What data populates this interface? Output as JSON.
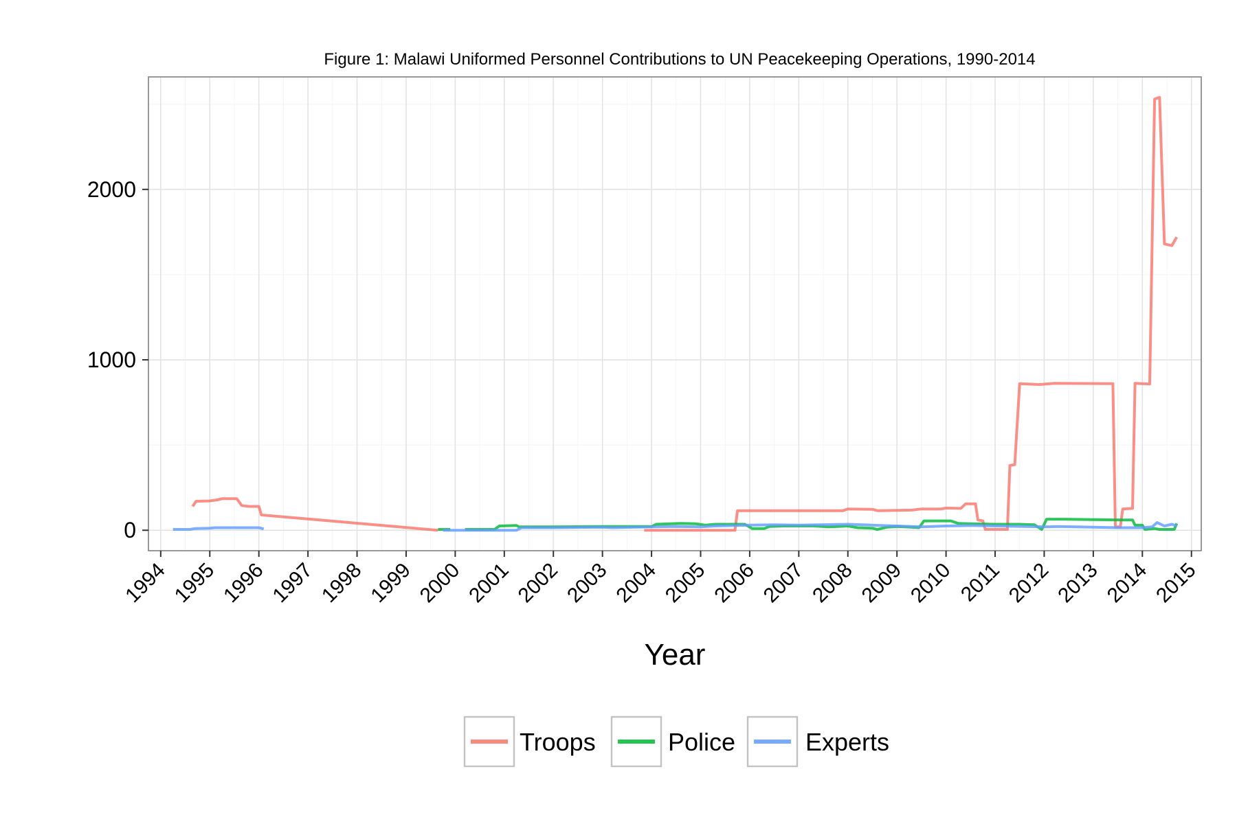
{
  "chart_data": {
    "type": "line",
    "title": "Figure 1: Malawi Uniformed Personnel Contributions to UN Peacekeeping Operations, 1990-2014",
    "xlabel": "Year",
    "ylabel": "",
    "xlim": [
      1993.75,
      2015.2
    ],
    "ylim": [
      -120,
      2660
    ],
    "x_ticks": [
      "1994",
      "1995",
      "1996",
      "1997",
      "1998",
      "1999",
      "2000",
      "2001",
      "2002",
      "2003",
      "2004",
      "2005",
      "2006",
      "2007",
      "2008",
      "2009",
      "2010",
      "2011",
      "2012",
      "2013",
      "2014",
      "2015"
    ],
    "y_ticks": [
      0,
      1000,
      2000
    ],
    "grid": true,
    "legend_position": "bottom",
    "series": [
      {
        "name": "Troops",
        "color": "#F8766D",
        "segments": [
          [
            [
              1994.65,
              140
            ],
            [
              1994.72,
              170
            ],
            [
              1995.0,
              172
            ],
            [
              1995.15,
              178
            ],
            [
              1995.25,
              185
            ],
            [
              1995.55,
              185
            ],
            [
              1995.65,
              145
            ],
            [
              1995.8,
              140
            ],
            [
              1996.0,
              140
            ],
            [
              1996.05,
              90
            ],
            [
              1999.65,
              0
            ]
          ],
          [
            [
              2003.85,
              0
            ],
            [
              2005.7,
              0
            ],
            [
              2005.75,
              115
            ],
            [
              2007.0,
              115
            ],
            [
              2007.9,
              115
            ],
            [
              2008.0,
              125
            ],
            [
              2008.5,
              123
            ],
            [
              2008.6,
              115
            ],
            [
              2009.3,
              118
            ],
            [
              2009.5,
              125
            ],
            [
              2009.9,
              125
            ],
            [
              2010.0,
              130
            ],
            [
              2010.3,
              128
            ],
            [
              2010.4,
              155
            ],
            [
              2010.6,
              155
            ],
            [
              2010.65,
              60
            ],
            [
              2010.75,
              55
            ],
            [
              2010.8,
              5
            ],
            [
              2011.25,
              5
            ],
            [
              2011.3,
              380
            ],
            [
              2011.4,
              385
            ],
            [
              2011.5,
              860
            ],
            [
              2011.9,
              855
            ],
            [
              2012.2,
              862
            ],
            [
              2013.4,
              860
            ],
            [
              2013.45,
              20
            ],
            [
              2013.55,
              20
            ],
            [
              2013.6,
              125
            ],
            [
              2013.8,
              128
            ],
            [
              2013.85,
              862
            ],
            [
              2014.15,
              858
            ],
            [
              2014.25,
              2530
            ],
            [
              2014.35,
              2540
            ],
            [
              2014.45,
              1680
            ],
            [
              2014.6,
              1670
            ],
            [
              2014.7,
              1720
            ]
          ]
        ]
      },
      {
        "name": "Police",
        "color": "#00BA38",
        "segments": [
          [
            [
              1999.65,
              5
            ],
            [
              1999.9,
              5
            ]
          ],
          [
            [
              2000.2,
              5
            ],
            [
              2000.8,
              5
            ],
            [
              2000.9,
              25
            ],
            [
              2001.25,
              28
            ],
            [
              2001.3,
              20
            ],
            [
              2002.0,
              20
            ],
            [
              2003.0,
              22
            ],
            [
              2004.0,
              22
            ],
            [
              2004.1,
              35
            ],
            [
              2004.4,
              38
            ],
            [
              2004.6,
              40
            ],
            [
              2004.9,
              38
            ],
            [
              2005.1,
              30
            ],
            [
              2005.3,
              35
            ],
            [
              2005.9,
              35
            ],
            [
              2006.05,
              10
            ],
            [
              2006.3,
              10
            ],
            [
              2006.4,
              22
            ],
            [
              2006.7,
              25
            ],
            [
              2007.3,
              25
            ],
            [
              2007.6,
              20
            ],
            [
              2007.8,
              22
            ],
            [
              2008.0,
              25
            ],
            [
              2008.2,
              15
            ],
            [
              2008.5,
              12
            ],
            [
              2008.6,
              5
            ],
            [
              2008.8,
              18
            ],
            [
              2009.0,
              22
            ],
            [
              2009.3,
              18
            ],
            [
              2009.45,
              15
            ],
            [
              2009.55,
              55
            ],
            [
              2010.1,
              55
            ],
            [
              2010.25,
              40
            ],
            [
              2011.0,
              35
            ],
            [
              2011.5,
              35
            ],
            [
              2011.8,
              32
            ],
            [
              2011.95,
              5
            ],
            [
              2012.05,
              65
            ],
            [
              2012.4,
              65
            ],
            [
              2013.0,
              62
            ],
            [
              2013.6,
              60
            ],
            [
              2013.8,
              60
            ],
            [
              2013.85,
              30
            ],
            [
              2014.0,
              30
            ],
            [
              2014.05,
              5
            ],
            [
              2014.25,
              10
            ],
            [
              2014.35,
              5
            ],
            [
              2014.5,
              5
            ],
            [
              2014.65,
              5
            ],
            [
              2014.7,
              40
            ]
          ]
        ]
      },
      {
        "name": "Experts",
        "color": "#619CFF",
        "segments": [
          [
            [
              1994.25,
              5
            ],
            [
              1994.6,
              5
            ],
            [
              1994.7,
              10
            ],
            [
              1995.0,
              12
            ],
            [
              1995.1,
              15
            ],
            [
              1996.0,
              15
            ],
            [
              1996.1,
              8
            ]
          ],
          [
            [
              1999.75,
              0
            ],
            [
              2001.25,
              0
            ],
            [
              2001.35,
              15
            ],
            [
              2002.0,
              15
            ],
            [
              2003.0,
              18
            ],
            [
              2003.2,
              15
            ],
            [
              2004.0,
              20
            ],
            [
              2004.5,
              22
            ],
            [
              2005.0,
              20
            ],
            [
              2005.3,
              25
            ],
            [
              2006.0,
              30
            ],
            [
              2006.5,
              32
            ],
            [
              2007.0,
              30
            ],
            [
              2008.0,
              35
            ],
            [
              2008.5,
              30
            ],
            [
              2009.0,
              25
            ],
            [
              2009.5,
              20
            ],
            [
              2010.0,
              25
            ],
            [
              2010.5,
              28
            ],
            [
              2011.0,
              25
            ],
            [
              2012.0,
              20
            ],
            [
              2012.3,
              22
            ],
            [
              2013.0,
              18
            ],
            [
              2013.5,
              15
            ],
            [
              2014.0,
              15
            ],
            [
              2014.2,
              20
            ],
            [
              2014.3,
              45
            ],
            [
              2014.45,
              25
            ],
            [
              2014.6,
              35
            ],
            [
              2014.7,
              25
            ]
          ]
        ]
      }
    ]
  }
}
